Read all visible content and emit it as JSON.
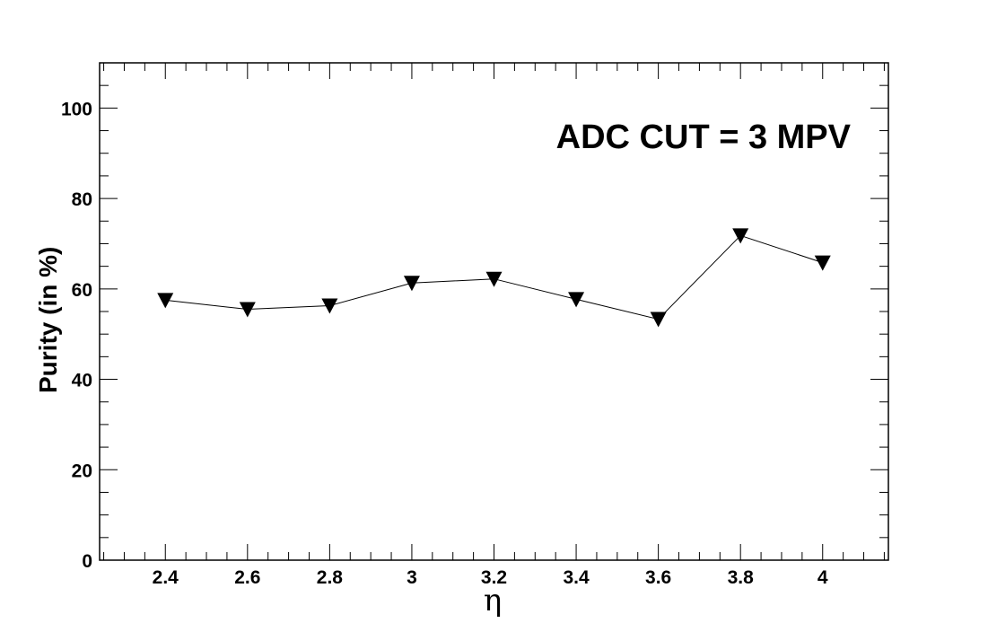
{
  "chart_data": {
    "type": "line",
    "title": "",
    "annotation": "ADC CUT = 3 MPV",
    "xlabel": "η",
    "ylabel": "Purity (in %)",
    "xlim": [
      2.24,
      4.16
    ],
    "ylim": [
      0,
      110
    ],
    "x_ticks": [
      2.4,
      2.6,
      2.8,
      3,
      3.2,
      3.4,
      3.6,
      3.8,
      4
    ],
    "x_tick_labels": [
      "2.4",
      "2.6",
      "2.8",
      "3",
      "3.2",
      "3.4",
      "3.6",
      "3.8",
      "4"
    ],
    "y_ticks": [
      0,
      20,
      40,
      60,
      80,
      100
    ],
    "y_tick_labels": [
      "0",
      "20",
      "40",
      "60",
      "80",
      "100"
    ],
    "grid": false,
    "marker": "triangle-down",
    "colors": {
      "line": "#000000",
      "marker": "#000000",
      "frame": "#000000"
    },
    "series": [
      {
        "x": [
          2.4,
          2.6,
          2.8,
          3.0,
          3.2,
          3.4,
          3.6,
          3.8,
          4.0
        ],
        "y": [
          57.5,
          55.5,
          56.3,
          61.3,
          62.2,
          57.7,
          53.3,
          71.8,
          65.8
        ]
      }
    ]
  }
}
